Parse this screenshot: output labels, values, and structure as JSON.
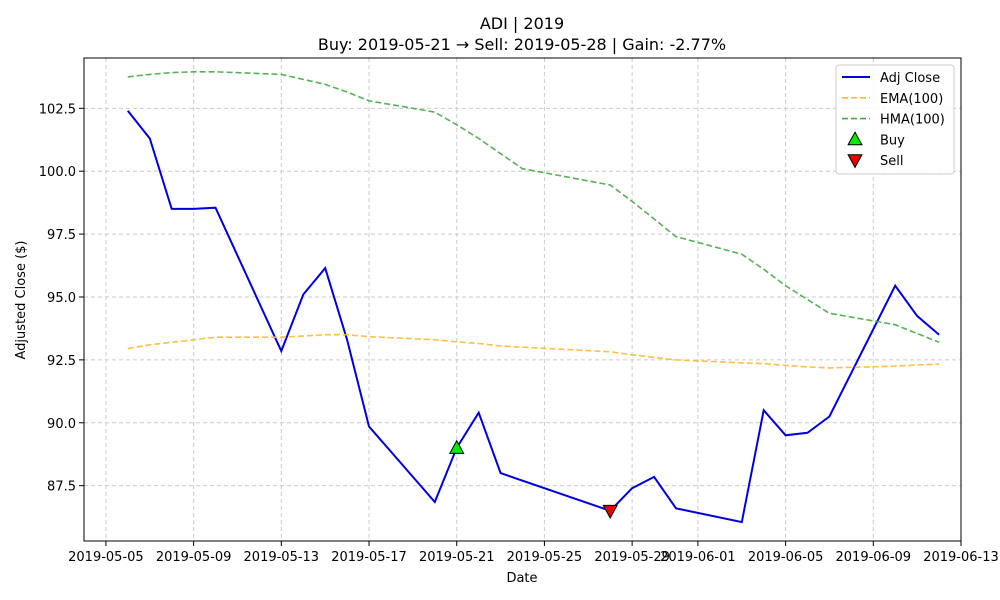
{
  "chart_data": {
    "type": "line",
    "title": "ADI | 2019",
    "subtitle": "Buy: 2019-05-21  →  Sell: 2019-05-28  |  Gain: -2.77%",
    "xlabel": "Date",
    "ylabel": "Adjusted Close ($)",
    "xlim": [
      "2019-05-04",
      "2019-06-13"
    ],
    "ylim": [
      85.3,
      104.5
    ],
    "x_ticks": [
      "2019-05-05",
      "2019-05-09",
      "2019-05-13",
      "2019-05-17",
      "2019-05-21",
      "2019-05-25",
      "2019-05-29",
      "2019-06-01",
      "2019-06-05",
      "2019-06-09",
      "2019-06-13"
    ],
    "y_ticks": [
      87.5,
      90.0,
      92.5,
      95.0,
      97.5,
      100.0,
      102.5
    ],
    "y_tick_labels": [
      "87.5",
      "90.0",
      "92.5",
      "95.0",
      "97.5",
      "100.0",
      "102.5"
    ],
    "grid": true,
    "legend_position": "top-right",
    "series": [
      {
        "name": "Adj Close",
        "style": "solid",
        "color": "#0000dd",
        "points": [
          [
            "2019-05-06",
            102.4
          ],
          [
            "2019-05-07",
            101.3
          ],
          [
            "2019-05-08",
            98.5
          ],
          [
            "2019-05-09",
            98.5
          ],
          [
            "2019-05-10",
            98.55
          ],
          [
            "2019-05-13",
            92.85
          ],
          [
            "2019-05-14",
            95.1
          ],
          [
            "2019-05-15",
            96.15
          ],
          [
            "2019-05-16",
            93.3
          ],
          [
            "2019-05-17",
            89.85
          ],
          [
            "2019-05-20",
            86.85
          ],
          [
            "2019-05-21",
            89.0
          ],
          [
            "2019-05-22",
            90.4
          ],
          [
            "2019-05-23",
            88.0
          ],
          [
            "2019-05-28",
            86.5
          ],
          [
            "2019-05-29",
            87.4
          ],
          [
            "2019-05-30",
            87.85
          ],
          [
            "2019-05-31",
            86.6
          ],
          [
            "2019-06-03",
            86.05
          ],
          [
            "2019-06-04",
            90.5
          ],
          [
            "2019-06-05",
            89.5
          ],
          [
            "2019-06-06",
            89.6
          ],
          [
            "2019-06-07",
            90.25
          ],
          [
            "2019-06-10",
            95.45
          ],
          [
            "2019-06-11",
            94.25
          ],
          [
            "2019-06-12",
            93.5
          ]
        ]
      },
      {
        "name": "EMA(100)",
        "style": "dashed",
        "color": "#ffb833",
        "points": [
          [
            "2019-05-06",
            92.95
          ],
          [
            "2019-05-07",
            93.1
          ],
          [
            "2019-05-08",
            93.2
          ],
          [
            "2019-05-09",
            93.3
          ],
          [
            "2019-05-10",
            93.4
          ],
          [
            "2019-05-13",
            93.4
          ],
          [
            "2019-05-14",
            93.45
          ],
          [
            "2019-05-15",
            93.5
          ],
          [
            "2019-05-16",
            93.5
          ],
          [
            "2019-05-17",
            93.42
          ],
          [
            "2019-05-20",
            93.3
          ],
          [
            "2019-05-21",
            93.22
          ],
          [
            "2019-05-22",
            93.15
          ],
          [
            "2019-05-23",
            93.05
          ],
          [
            "2019-05-28",
            92.82
          ],
          [
            "2019-05-29",
            92.7
          ],
          [
            "2019-05-30",
            92.6
          ],
          [
            "2019-05-31",
            92.5
          ],
          [
            "2019-06-03",
            92.38
          ],
          [
            "2019-06-04",
            92.35
          ],
          [
            "2019-06-05",
            92.28
          ],
          [
            "2019-06-06",
            92.22
          ],
          [
            "2019-06-07",
            92.18
          ],
          [
            "2019-06-10",
            92.25
          ],
          [
            "2019-06-11",
            92.3
          ],
          [
            "2019-06-12",
            92.33
          ]
        ]
      },
      {
        "name": "HMA(100)",
        "style": "dashed",
        "color": "#44aa44",
        "points": [
          [
            "2019-05-06",
            103.75
          ],
          [
            "2019-05-07",
            103.85
          ],
          [
            "2019-05-08",
            103.92
          ],
          [
            "2019-05-09",
            103.95
          ],
          [
            "2019-05-10",
            103.95
          ],
          [
            "2019-05-13",
            103.85
          ],
          [
            "2019-05-14",
            103.65
          ],
          [
            "2019-05-15",
            103.45
          ],
          [
            "2019-05-16",
            103.15
          ],
          [
            "2019-05-17",
            102.8
          ],
          [
            "2019-05-20",
            102.35
          ],
          [
            "2019-05-21",
            101.85
          ],
          [
            "2019-05-22",
            101.3
          ],
          [
            "2019-05-23",
            100.7
          ],
          [
            "2019-05-24",
            100.1
          ],
          [
            "2019-05-28",
            99.45
          ],
          [
            "2019-05-29",
            98.8
          ],
          [
            "2019-05-30",
            98.1
          ],
          [
            "2019-05-31",
            97.4
          ],
          [
            "2019-06-03",
            96.7
          ],
          [
            "2019-06-04",
            96.1
          ],
          [
            "2019-06-05",
            95.45
          ],
          [
            "2019-06-06",
            94.9
          ],
          [
            "2019-06-07",
            94.35
          ],
          [
            "2019-06-10",
            93.9
          ],
          [
            "2019-06-11",
            93.55
          ],
          [
            "2019-06-12",
            93.2
          ]
        ]
      }
    ],
    "markers": [
      {
        "name": "Buy",
        "date": "2019-05-21",
        "value": 89.0,
        "shape": "triangle-up",
        "color": "#00ee00"
      },
      {
        "name": "Sell",
        "date": "2019-05-28",
        "value": 86.5,
        "shape": "triangle-down",
        "color": "#ee0000"
      }
    ]
  }
}
